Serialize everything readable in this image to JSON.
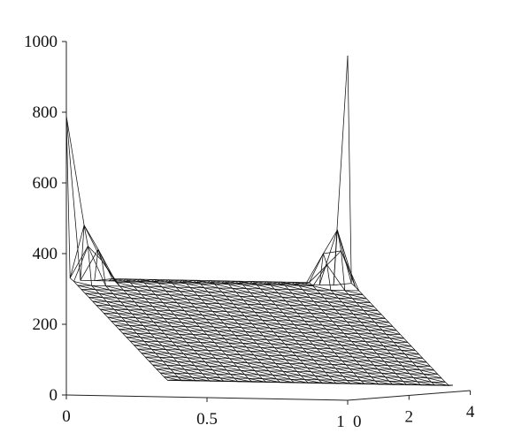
{
  "chart_data": {
    "type": "surface-wireframe",
    "title": "",
    "zlim": [
      0,
      1000
    ],
    "z_ticks": [
      "0",
      "200",
      "400",
      "600",
      "800",
      "1000"
    ],
    "x_ticks": [
      "0",
      "0.5",
      "1"
    ],
    "y_ticks": [
      "0",
      "2",
      "4"
    ],
    "y_range": [
      0,
      4
    ],
    "x_range": [
      0,
      1
    ],
    "grid": false,
    "surface": {
      "description_values": {
        "baseline_at_x_0": 325,
        "baseline_at_x_1": 325,
        "plateau_value": 330,
        "far_edge_value": 15,
        "spike_at_x_0_y_0": 790,
        "spike_at_x_1_y_0": 975,
        "bump_near_x_0": 480,
        "bump_near_x_1": 480
      }
    }
  }
}
